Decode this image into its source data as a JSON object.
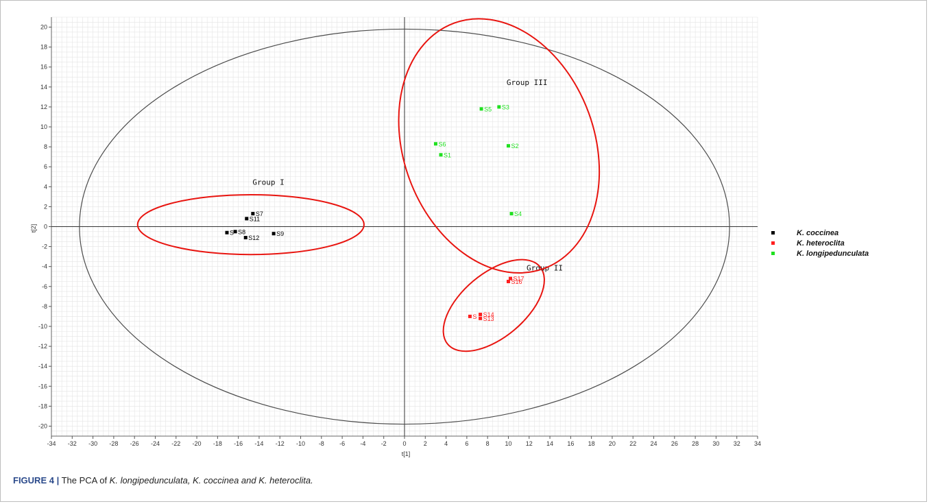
{
  "chart_data": {
    "type": "scatter",
    "xlabel": "t[1]",
    "ylabel": "t[2]",
    "xlim": [
      -34,
      34
    ],
    "ylim": [
      -21,
      21
    ],
    "x_ticks": [
      -34,
      -32,
      -30,
      -28,
      -26,
      -24,
      -22,
      -20,
      -18,
      -16,
      -14,
      -12,
      -10,
      -8,
      -6,
      -4,
      -2,
      0,
      2,
      4,
      6,
      8,
      10,
      12,
      14,
      16,
      18,
      20,
      22,
      24,
      26,
      28,
      30,
      32,
      34
    ],
    "y_ticks": [
      20,
      18,
      16,
      14,
      12,
      10,
      8,
      6,
      4,
      2,
      0,
      -2,
      -4,
      -6,
      -8,
      -10,
      -12,
      -14,
      -16,
      -18,
      -20
    ],
    "grid": true,
    "legend_position": "right",
    "series": [
      {
        "name": "K. coccinea",
        "color": "#000000",
        "points": [
          {
            "label": "S7",
            "x": -14.6,
            "y": 1.3
          },
          {
            "label": "S11",
            "x": -15.2,
            "y": 0.8
          },
          {
            "label": "S",
            "x": -17.1,
            "y": -0.6
          },
          {
            "label": "S8",
            "x": -16.3,
            "y": -0.5
          },
          {
            "label": "S12",
            "x": -15.3,
            "y": -1.1
          },
          {
            "label": "S9",
            "x": -12.6,
            "y": -0.7
          }
        ]
      },
      {
        "name": "K. heteroclita",
        "color": "#ff1f1f",
        "points": [
          {
            "label": "S17",
            "x": 10.2,
            "y": -5.2
          },
          {
            "label": "S16",
            "x": 10.0,
            "y": -5.5
          },
          {
            "label": "S",
            "x": 6.3,
            "y": -9.0
          },
          {
            "label": "S14",
            "x": 7.3,
            "y": -8.8
          },
          {
            "label": "S13",
            "x": 7.3,
            "y": -9.2
          }
        ]
      },
      {
        "name": "K. longipedunculata",
        "color": "#1fe01f",
        "points": [
          {
            "label": "S3",
            "x": 9.1,
            "y": 12.0
          },
          {
            "label": "S5",
            "x": 7.4,
            "y": 11.8
          },
          {
            "label": "S6",
            "x": 3.0,
            "y": 8.3
          },
          {
            "label": "S2",
            "x": 10.0,
            "y": 8.1
          },
          {
            "label": "S1",
            "x": 3.5,
            "y": 7.2
          },
          {
            "label": "S4",
            "x": 10.3,
            "y": 1.3
          }
        ]
      }
    ],
    "annotations": [
      {
        "text": "Group I",
        "cx": -14.8,
        "cy": 0.2,
        "rx": 10.9,
        "ry": 3.0,
        "angle": 0,
        "label_x": -13.1,
        "label_y": 4.2
      },
      {
        "text": "Group II",
        "cx": 8.6,
        "cy": -7.9,
        "rx": 5.8,
        "ry": 3.2,
        "angle": -40,
        "label_x": 13.5,
        "label_y": -4.4
      },
      {
        "text": "Group III",
        "cx": 9.1,
        "cy": 8.1,
        "rx": 9.2,
        "ry": 13.1,
        "angle": -20,
        "label_x": 11.8,
        "label_y": 14.2
      }
    ],
    "confidence_ellipse": {
      "cx": 0,
      "cy": 0,
      "rx": 31.3,
      "ry": 19.8
    }
  },
  "caption": {
    "figure_label": "FIGURE 4 |",
    "text_plain": " The PCA of ",
    "text_italic": "K. longipedunculata, K. coccinea and K. heteroclita."
  },
  "colors": {
    "group_ellipse": "#e8140f",
    "confidence_ellipse": "#4a4a4a",
    "grid": "#e4e4e4",
    "axis": "#333333"
  }
}
